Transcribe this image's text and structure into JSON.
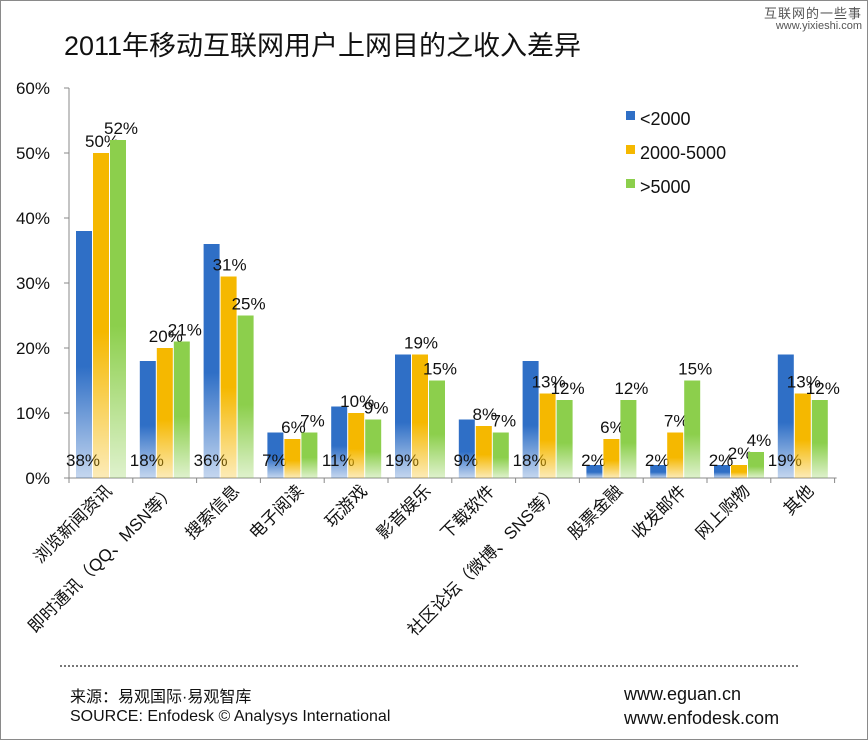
{
  "watermark": {
    "line1": "互联网的一些事",
    "line2": "www.yixieshi.com"
  },
  "footer": {
    "source_cn": "来源：易观国际·易观智库",
    "source_en": "SOURCE: Enfodesk © Analysys International",
    "url1": "www.eguan.cn",
    "url2": "www.enfodesk.com"
  },
  "colors": {
    "series0": "#2f6fc6",
    "series1": "#f5b800",
    "series2": "#8ccf4c",
    "axis": "#888888"
  },
  "chart_data": {
    "type": "bar",
    "title": "2011年移动互联网用户上网目的之收入差异",
    "xlabel": "",
    "ylabel": "",
    "ylim": [
      0,
      60
    ],
    "y_ticks": [
      "0%",
      "10%",
      "20%",
      "30%",
      "40%",
      "50%",
      "60%"
    ],
    "legend_position": "top-right",
    "grid": false,
    "categories": [
      "浏览新闻资讯",
      "即时通讯（QQ、MSN等）",
      "搜索信息",
      "电子阅读",
      "玩游戏",
      "影音娱乐",
      "下载软件",
      "社区论坛（微博、SNS等）",
      "股票金融",
      "收发邮件",
      "网上购物",
      "其他"
    ],
    "series": [
      {
        "name": "<2000",
        "values": [
          38,
          18,
          36,
          7,
          11,
          19,
          9,
          18,
          2,
          2,
          2,
          19
        ],
        "labels": [
          "38%",
          "18%",
          "36%",
          "7%",
          "11%",
          "19%",
          "9%",
          "18%",
          "2%",
          "2%",
          "2%",
          "19%"
        ]
      },
      {
        "name": "2000-5000",
        "values": [
          50,
          20,
          31,
          6,
          10,
          19,
          8,
          13,
          6,
          7,
          2,
          13
        ],
        "labels": [
          "50%",
          "20%",
          "31%",
          "6%",
          "10%",
          "19%",
          "8%",
          "13%",
          "6%",
          "7%",
          "2%",
          "13%"
        ]
      },
      {
        "name": ">5000",
        "values": [
          52,
          21,
          25,
          7,
          9,
          15,
          7,
          12,
          12,
          15,
          4,
          12
        ],
        "labels": [
          "52%",
          "21%",
          "25%",
          "7%",
          "9%",
          "15%",
          "7%",
          "12%",
          "12%",
          "15%",
          "4%",
          "12%"
        ]
      }
    ]
  }
}
